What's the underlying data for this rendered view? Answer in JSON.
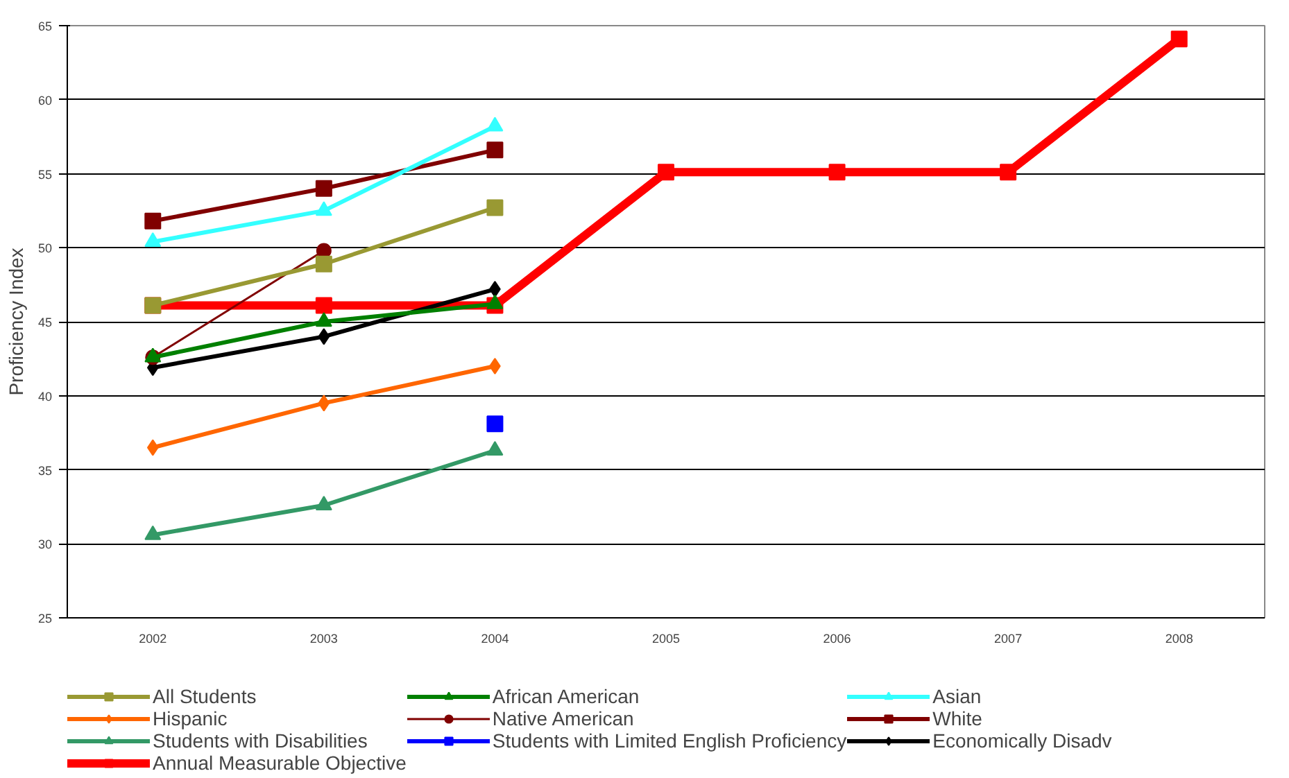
{
  "chart_data": {
    "type": "line",
    "ylabel": "Proficiency Index",
    "categories": [
      "2002",
      "2003",
      "2004",
      "2005",
      "2006",
      "2007",
      "2008"
    ],
    "ylim": [
      25,
      65
    ],
    "yticks": [
      25,
      30,
      35,
      40,
      45,
      50,
      55,
      60,
      65
    ],
    "grid": "y",
    "legend": "bottom",
    "series": [
      {
        "name": "All Students",
        "color": "#999933",
        "marker": "square",
        "values": [
          46.1,
          48.9,
          52.7,
          null,
          null,
          null,
          null
        ]
      },
      {
        "name": "African American",
        "color": "#008000",
        "marker": "triangle",
        "values": [
          42.6,
          45.0,
          46.2,
          null,
          null,
          null,
          null
        ]
      },
      {
        "name": "Asian",
        "color": "#33ffff",
        "marker": "triangle",
        "values": [
          50.4,
          52.5,
          58.2,
          null,
          null,
          null,
          null
        ]
      },
      {
        "name": "Hispanic",
        "color": "#ff6600",
        "marker": "diamond",
        "values": [
          36.5,
          39.5,
          42.0,
          null,
          null,
          null,
          null
        ]
      },
      {
        "name": "Native American",
        "color": "#800000",
        "marker": "circle",
        "values": [
          42.6,
          49.8,
          null,
          null,
          null,
          null,
          null
        ]
      },
      {
        "name": "White",
        "color": "#800000",
        "marker": "square",
        "values": [
          51.8,
          54.0,
          56.6,
          null,
          null,
          null,
          null
        ]
      },
      {
        "name": "Students with Disabilities",
        "color": "#339966",
        "marker": "triangle",
        "values": [
          30.6,
          32.6,
          36.3,
          null,
          null,
          null,
          null
        ]
      },
      {
        "name": "Students with Limited English Proficiency",
        "color": "#0000ff",
        "marker": "square",
        "values": [
          null,
          null,
          38.1,
          null,
          null,
          null,
          null
        ]
      },
      {
        "name": "Economically Disadv",
        "color": "#000000",
        "marker": "diamond",
        "values": [
          41.9,
          44.0,
          47.2,
          null,
          null,
          null,
          null
        ]
      },
      {
        "name": "Annual Measurable Objective",
        "color": "#ff0000",
        "marker": "square",
        "values": [
          46.1,
          46.1,
          46.1,
          55.1,
          55.1,
          55.1,
          64.1
        ]
      }
    ]
  }
}
